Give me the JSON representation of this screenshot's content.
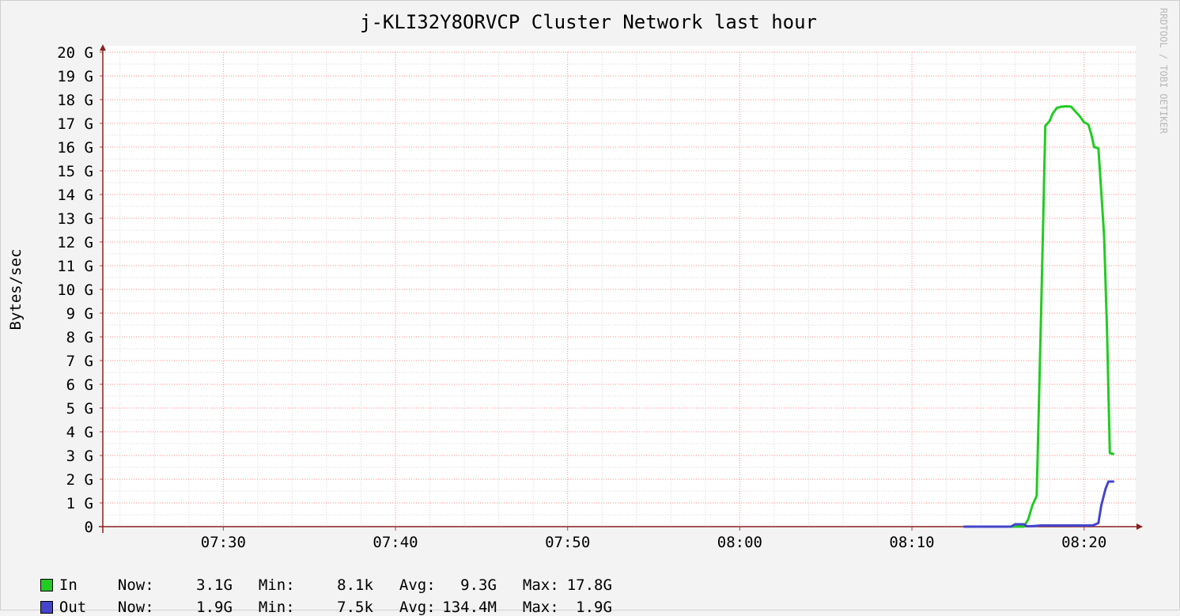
{
  "chart_data": {
    "type": "line",
    "title": "j-KLI32Y8ORVCP Cluster Network last hour",
    "ylabel": "Bytes/sec",
    "watermark": "RRDTOOL / TOBI OETIKER",
    "x_range": [
      "07:23",
      "08:23"
    ],
    "x_ticks": [
      "07:30",
      "07:40",
      "07:50",
      "08:00",
      "08:10",
      "08:20"
    ],
    "y_ticks": [
      "0",
      "1 G",
      "2 G",
      "3 G",
      "4 G",
      "5 G",
      "6 G",
      "7 G",
      "8 G",
      "9 G",
      "10 G",
      "11 G",
      "12 G",
      "13 G",
      "14 G",
      "15 G",
      "16 G",
      "17 G",
      "18 G",
      "19 G",
      "20 G"
    ],
    "ylim": [
      0,
      20
    ],
    "y_unit": "G",
    "grid": true,
    "series": [
      {
        "name": "In",
        "color": "#22cc22",
        "points": [
          [
            "08:13:00",
            0
          ],
          [
            "08:16:30",
            0
          ],
          [
            "08:16:45",
            0.3
          ],
          [
            "08:17:00",
            0.9
          ],
          [
            "08:17:15",
            1.3
          ],
          [
            "08:17:30",
            8.9
          ],
          [
            "08:17:45",
            16.9
          ],
          [
            "08:18:00",
            17.1
          ],
          [
            "08:18:10",
            17.4
          ],
          [
            "08:18:25",
            17.65
          ],
          [
            "08:18:40",
            17.7
          ],
          [
            "08:19:00",
            17.72
          ],
          [
            "08:19:15",
            17.7
          ],
          [
            "08:19:30",
            17.5
          ],
          [
            "08:19:45",
            17.3
          ],
          [
            "08:20:00",
            17.05
          ],
          [
            "08:20:15",
            16.95
          ],
          [
            "08:20:25",
            16.55
          ],
          [
            "08:20:35",
            16.0
          ],
          [
            "08:20:50",
            15.95
          ],
          [
            "08:21:00",
            14.1
          ],
          [
            "08:21:10",
            12.2
          ],
          [
            "08:21:20",
            8.3
          ],
          [
            "08:21:30",
            3.1
          ],
          [
            "08:21:45",
            3.05
          ]
        ]
      },
      {
        "name": "Out",
        "color": "#4444cc",
        "points": [
          [
            "08:13:00",
            0
          ],
          [
            "08:15:45",
            0
          ],
          [
            "08:16:00",
            0.1
          ],
          [
            "08:16:30",
            0.1
          ],
          [
            "08:16:40",
            0.02
          ],
          [
            "08:17:00",
            0.02
          ],
          [
            "08:17:30",
            0.05
          ],
          [
            "08:20:30",
            0.05
          ],
          [
            "08:20:50",
            0.15
          ],
          [
            "08:21:00",
            0.9
          ],
          [
            "08:21:15",
            1.6
          ],
          [
            "08:21:25",
            1.9
          ],
          [
            "08:21:45",
            1.9
          ]
        ]
      }
    ],
    "legend": [
      {
        "name": "In",
        "color": "#22cc22",
        "now_label": "Now:",
        "now": "3.1G",
        "min_label": "Min:",
        "min": "8.1k",
        "avg_label": "Avg:",
        "avg": "9.3G",
        "max_label": "Max:",
        "max": "17.8G"
      },
      {
        "name": "Out",
        "color": "#4444cc",
        "now_label": "Now:",
        "now": "1.9G",
        "min_label": "Min:",
        "min": "7.5k",
        "avg_label": "Avg:",
        "avg": "134.4M",
        "max_label": "Max:",
        "max": "1.9G"
      }
    ]
  }
}
